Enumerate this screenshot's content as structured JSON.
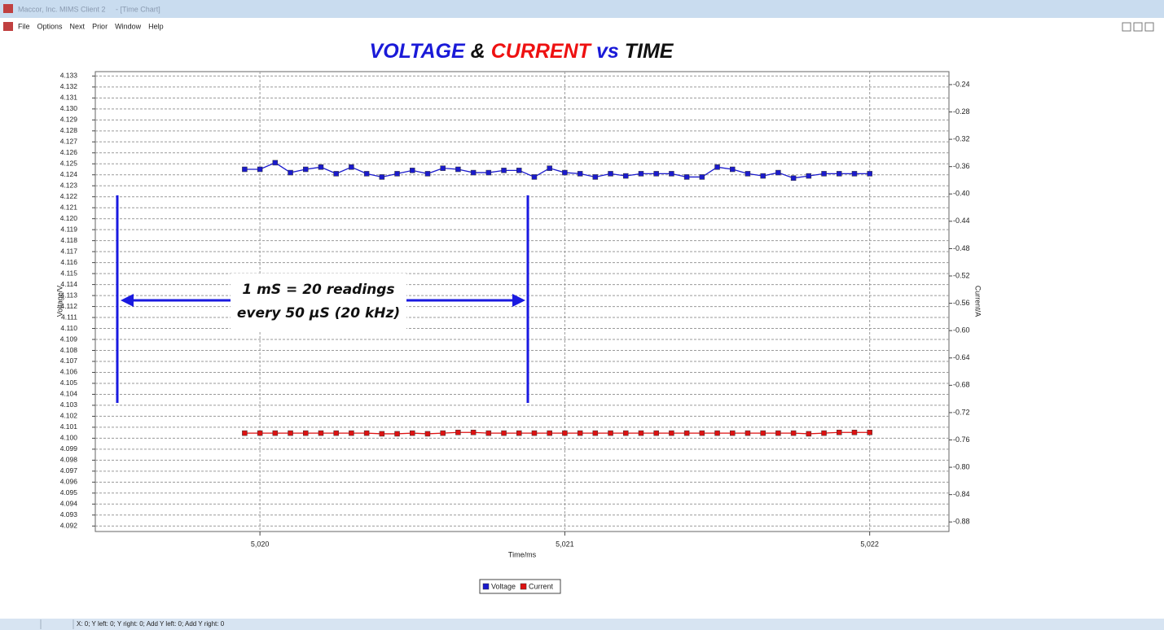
{
  "window": {
    "title": "Maccor, Inc. MIMS Client 2     - [Time Chart]",
    "menu": [
      "File",
      "Options",
      "Next",
      "Prior",
      "Window",
      "Help"
    ],
    "status": "X: 0; Y left: 0; Y right: 0; Add Y left: 0; Add Y right: 0"
  },
  "chart_data": {
    "type": "line",
    "title_parts": [
      {
        "text": "VOLTAGE",
        "color": "#1a1ad8"
      },
      {
        "text": "&",
        "color": "#111111"
      },
      {
        "text": "CURRENT",
        "color": "#ee1111"
      },
      {
        "text": "vs",
        "color": "#1a1ad8"
      },
      {
        "text": "TIME",
        "color": "#111111"
      }
    ],
    "x": [
      5.01995,
      5.02,
      5.02005,
      5.0201,
      5.02015,
      5.0202,
      5.02025,
      5.0203,
      5.02035,
      5.0204,
      5.02045,
      5.0205,
      5.02055,
      5.0206,
      5.02065,
      5.0207,
      5.02075,
      5.0208,
      5.02085,
      5.0209,
      5.02095,
      5.021,
      5.02105,
      5.0211,
      5.02115,
      5.0212,
      5.02125,
      5.0213,
      5.02135,
      5.0214,
      5.02145,
      5.0215,
      5.02155,
      5.0216,
      5.02165,
      5.0217,
      5.02175,
      5.0218,
      5.02185,
      5.0219,
      5.02195,
      5.022
    ],
    "series": [
      {
        "name": "Voltage",
        "color": "#1a1acc",
        "values": [
          4.1245,
          4.1245,
          4.1251,
          4.1242,
          4.1245,
          4.1247,
          4.1241,
          4.1247,
          4.1241,
          4.1238,
          4.1241,
          4.1244,
          4.1241,
          4.1246,
          4.1245,
          4.1242,
          4.1242,
          4.1244,
          4.1244,
          4.1238,
          4.1246,
          4.1242,
          4.1241,
          4.1238,
          4.1241,
          4.1239,
          4.1241,
          4.1241,
          4.1241,
          4.1238,
          4.1238,
          4.1247,
          4.1245,
          4.1241,
          4.1239,
          4.1242,
          4.1237,
          4.1239,
          4.1241,
          4.1241,
          4.1241,
          4.1241
        ]
      },
      {
        "name": "Current",
        "color": "#dd1111",
        "axis": "y2",
        "values": [
          -0.75,
          -0.75,
          -0.75,
          -0.75,
          -0.75,
          -0.75,
          -0.75,
          -0.75,
          -0.75,
          -0.751,
          -0.751,
          -0.75,
          -0.751,
          -0.75,
          -0.749,
          -0.749,
          -0.75,
          -0.75,
          -0.75,
          -0.75,
          -0.75,
          -0.75,
          -0.75,
          -0.75,
          -0.75,
          -0.75,
          -0.75,
          -0.75,
          -0.75,
          -0.75,
          -0.75,
          -0.75,
          -0.75,
          -0.75,
          -0.75,
          -0.75,
          -0.75,
          -0.751,
          -0.75,
          -0.749,
          -0.749,
          -0.749
        ]
      }
    ],
    "xlim": [
      5.01946,
      5.02226
    ],
    "xticks": [
      {
        "value": 5.02,
        "label": "5,020"
      },
      {
        "value": 5.021,
        "label": "5,021"
      },
      {
        "value": 5.022,
        "label": "5,022"
      }
    ],
    "ylim": [
      4.0915,
      4.1334
    ],
    "yticks": [
      4.092,
      4.093,
      4.094,
      4.095,
      4.096,
      4.097,
      4.098,
      4.099,
      {
        "value": 4.1,
        "label": "4.100"
      },
      4.101,
      4.102,
      4.103,
      4.104,
      4.105,
      4.106,
      4.107,
      4.108,
      4.109,
      {
        "value": 4.11,
        "label": "4.110"
      },
      4.111,
      4.112,
      4.113,
      4.114,
      4.115,
      4.116,
      4.117,
      4.118,
      4.119,
      {
        "value": 4.12,
        "label": "4.120"
      },
      4.121,
      4.122,
      4.123,
      4.124,
      4.125,
      4.126,
      4.127,
      4.128,
      4.129,
      {
        "value": 4.13,
        "label": "4.130"
      },
      4.131,
      4.132,
      4.133
    ],
    "y2lim": [
      -0.894,
      -0.221
    ],
    "y2ticks": [
      -0.24,
      -0.28,
      -0.32,
      -0.36,
      {
        "value": -0.4,
        "label": "-0.40"
      },
      -0.44,
      -0.48,
      -0.52,
      -0.56,
      {
        "value": -0.6,
        "label": "-0.60"
      },
      -0.64,
      -0.68,
      -0.72,
      -0.76,
      {
        "value": -0.8,
        "label": "-0.80"
      },
      -0.84,
      -0.88
    ],
    "xlabel": "Time/ms",
    "ylabel": "Voltage/V",
    "y2label": "Current/A",
    "grid": true,
    "legend": "bottom",
    "annotations": [
      "1 mS = 20 readings",
      "every 50 µS (20 kHz)"
    ]
  }
}
